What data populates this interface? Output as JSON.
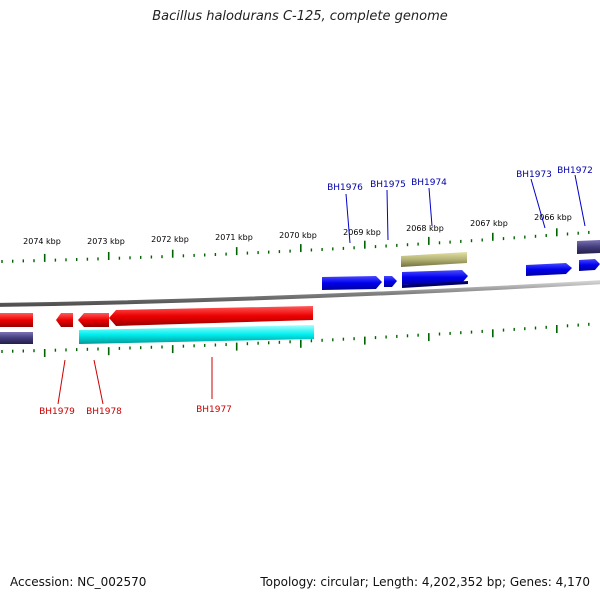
{
  "title": "Bacillus halodurans C-125, complete genome",
  "footer": {
    "accession": "Accession: NC_002570",
    "stats": "Topology: circular; Length: 4,202,352 bp; Genes: 4,170"
  },
  "colors": {
    "forward_gene": "#0000ff",
    "reverse_gene": "#ff0000",
    "rna_feature": "#b4b273",
    "repeat_feature": "#433d7c",
    "cyan_feature": "#00ffff",
    "tick": "#006400",
    "backbone": "#808080",
    "label_forward": "#0000aa",
    "label_reverse": "#cc0000"
  },
  "scale_labels": [
    "2074 kbp",
    "2073 kbp",
    "2072 kbp",
    "2071 kbp",
    "2070 kbp",
    "2069 kbp",
    "2068 kbp",
    "2067 kbp",
    "2066 kbp"
  ],
  "gene_labels_top": [
    "BH1976",
    "BH1975",
    "BH1974",
    "BH1973",
    "BH1972"
  ],
  "gene_labels_bottom": [
    "BH1979",
    "BH1978",
    "BH1977"
  ]
}
